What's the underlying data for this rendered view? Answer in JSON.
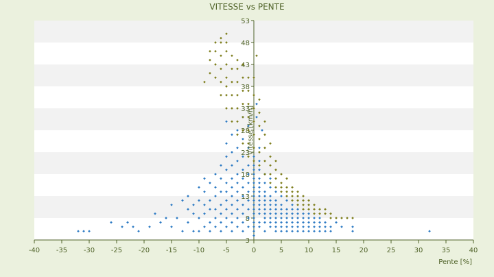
{
  "chart_data": {
    "type": "scatter",
    "title": "VITESSE vs PENTE",
    "xlabel": "Pente [%]",
    "ylabel": "Vitesse [km/h]",
    "xlim": [
      -40,
      40
    ],
    "ylim": [
      3,
      53
    ],
    "x_ticks": [
      -40,
      -35,
      -30,
      -25,
      -20,
      -15,
      -10,
      -5,
      0,
      5,
      10,
      15,
      20,
      25,
      30,
      35,
      40
    ],
    "y_ticks": [
      3,
      8,
      13,
      18,
      23,
      28,
      33,
      38,
      43,
      48,
      53
    ],
    "grid": "horizontal alternating bands",
    "legend": "none",
    "colors": {
      "background": "#ebf1de",
      "band_light": "#ffffff",
      "band_dark": "#f2f2f2",
      "axis": "#4f6228",
      "text": "#4f6228",
      "series_blue": "#2e7bc4",
      "series_olive": "#7f7f1f"
    },
    "series": [
      {
        "color": "#2e7bc4",
        "points": [
          [
            -32,
            5
          ],
          [
            -31,
            5
          ],
          [
            -30,
            5
          ],
          [
            -26,
            7
          ],
          [
            -24,
            6
          ],
          [
            -23,
            7
          ],
          [
            -22,
            6
          ],
          [
            -21,
            5
          ],
          [
            -19,
            6
          ],
          [
            -18,
            9
          ],
          [
            -17,
            7
          ],
          [
            -16,
            8
          ],
          [
            -15,
            11
          ],
          [
            -15,
            6
          ],
          [
            -14,
            8
          ],
          [
            -13,
            12
          ],
          [
            -13,
            5
          ],
          [
            -12,
            7
          ],
          [
            -12,
            10
          ],
          [
            -12,
            13
          ],
          [
            -11,
            5
          ],
          [
            -11,
            9
          ],
          [
            -11,
            11
          ],
          [
            -10,
            5
          ],
          [
            -10,
            8
          ],
          [
            -10,
            12
          ],
          [
            -10,
            15
          ],
          [
            -9,
            6
          ],
          [
            -9,
            9
          ],
          [
            -9,
            11
          ],
          [
            -9,
            14
          ],
          [
            -9,
            17
          ],
          [
            -8,
            5
          ],
          [
            -8,
            7
          ],
          [
            -8,
            10
          ],
          [
            -8,
            12
          ],
          [
            -8,
            16
          ],
          [
            -7,
            6
          ],
          [
            -7,
            8
          ],
          [
            -7,
            10
          ],
          [
            -7,
            13
          ],
          [
            -7,
            15
          ],
          [
            -7,
            18
          ],
          [
            -6,
            5
          ],
          [
            -6,
            7
          ],
          [
            -6,
            9
          ],
          [
            -6,
            11
          ],
          [
            -6,
            14
          ],
          [
            -6,
            17
          ],
          [
            -6,
            20
          ],
          [
            -5,
            6
          ],
          [
            -5,
            8
          ],
          [
            -5,
            10
          ],
          [
            -5,
            12
          ],
          [
            -5,
            14
          ],
          [
            -5,
            16
          ],
          [
            -5,
            19
          ],
          [
            -5,
            22
          ],
          [
            -5,
            25
          ],
          [
            -5,
            30
          ],
          [
            -4,
            5
          ],
          [
            -4,
            7
          ],
          [
            -4,
            9
          ],
          [
            -4,
            11
          ],
          [
            -4,
            13
          ],
          [
            -4,
            15
          ],
          [
            -4,
            17
          ],
          [
            -4,
            20
          ],
          [
            -4,
            23
          ],
          [
            -4,
            27
          ],
          [
            -3,
            6
          ],
          [
            -3,
            8
          ],
          [
            -3,
            10
          ],
          [
            -3,
            12
          ],
          [
            -3,
            14
          ],
          [
            -3,
            16
          ],
          [
            -3,
            18
          ],
          [
            -3,
            21
          ],
          [
            -3,
            24
          ],
          [
            -3,
            28
          ],
          [
            -2,
            5
          ],
          [
            -2,
            7
          ],
          [
            -2,
            9
          ],
          [
            -2,
            11
          ],
          [
            -2,
            13
          ],
          [
            -2,
            15
          ],
          [
            -2,
            17
          ],
          [
            -2,
            19
          ],
          [
            -2,
            22
          ],
          [
            -2,
            26
          ],
          [
            -2,
            31
          ],
          [
            -1,
            6
          ],
          [
            -1,
            8
          ],
          [
            -1,
            10
          ],
          [
            -1,
            12
          ],
          [
            -1,
            14
          ],
          [
            -1,
            16
          ],
          [
            -1,
            18
          ],
          [
            -1,
            20
          ],
          [
            -1,
            24
          ],
          [
            -1,
            29
          ],
          [
            0,
            4
          ],
          [
            0,
            5
          ],
          [
            0,
            6
          ],
          [
            0,
            7
          ],
          [
            0,
            8
          ],
          [
            0,
            9
          ],
          [
            0,
            10
          ],
          [
            0,
            11
          ],
          [
            0,
            12
          ],
          [
            0,
            13
          ],
          [
            0,
            14
          ],
          [
            0,
            15
          ],
          [
            0,
            16
          ],
          [
            0,
            17
          ],
          [
            0,
            18
          ],
          [
            0,
            19
          ],
          [
            0,
            20
          ],
          [
            0,
            22
          ],
          [
            0,
            24
          ],
          [
            0,
            27
          ],
          [
            0.5,
            31
          ],
          [
            0.5,
            34
          ],
          [
            1,
            6
          ],
          [
            1,
            7
          ],
          [
            1,
            9
          ],
          [
            1,
            10
          ],
          [
            1,
            11
          ],
          [
            1,
            12
          ],
          [
            1,
            13
          ],
          [
            1,
            14
          ],
          [
            1,
            15
          ],
          [
            1,
            16
          ],
          [
            1,
            17
          ],
          [
            1,
            19
          ],
          [
            1,
            21
          ],
          [
            1,
            24
          ],
          [
            1.5,
            28
          ],
          [
            2,
            5
          ],
          [
            2,
            7
          ],
          [
            2,
            8
          ],
          [
            2,
            9
          ],
          [
            2,
            10
          ],
          [
            2,
            11
          ],
          [
            2,
            12
          ],
          [
            2,
            13
          ],
          [
            2,
            14
          ],
          [
            2,
            16
          ],
          [
            2,
            18
          ],
          [
            3,
            6
          ],
          [
            3,
            7
          ],
          [
            3,
            8
          ],
          [
            3,
            9
          ],
          [
            3,
            10
          ],
          [
            3,
            11
          ],
          [
            3,
            12
          ],
          [
            3,
            13
          ],
          [
            3,
            15
          ],
          [
            3,
            17
          ],
          [
            4,
            5
          ],
          [
            4,
            6
          ],
          [
            4,
            7
          ],
          [
            4,
            8
          ],
          [
            4,
            9
          ],
          [
            4,
            10
          ],
          [
            4,
            11
          ],
          [
            4,
            12
          ],
          [
            4,
            14
          ],
          [
            5,
            5
          ],
          [
            5,
            6
          ],
          [
            5,
            7
          ],
          [
            5,
            8
          ],
          [
            5,
            9
          ],
          [
            5,
            10
          ],
          [
            5,
            11
          ],
          [
            5,
            13
          ],
          [
            6,
            5
          ],
          [
            6,
            6
          ],
          [
            6,
            7
          ],
          [
            6,
            8
          ],
          [
            6,
            9
          ],
          [
            6,
            10
          ],
          [
            6,
            12
          ],
          [
            7,
            5
          ],
          [
            7,
            6
          ],
          [
            7,
            7
          ],
          [
            7,
            8
          ],
          [
            7,
            9
          ],
          [
            7,
            10
          ],
          [
            7,
            11
          ],
          [
            8,
            5
          ],
          [
            8,
            6
          ],
          [
            8,
            7
          ],
          [
            8,
            8
          ],
          [
            8,
            9
          ],
          [
            8,
            10
          ],
          [
            9,
            5
          ],
          [
            9,
            6
          ],
          [
            9,
            7
          ],
          [
            9,
            8
          ],
          [
            9,
            9
          ],
          [
            10,
            5
          ],
          [
            10,
            6
          ],
          [
            10,
            7
          ],
          [
            10,
            8
          ],
          [
            10,
            9
          ],
          [
            11,
            5
          ],
          [
            11,
            6
          ],
          [
            11,
            7
          ],
          [
            11,
            8
          ],
          [
            12,
            5
          ],
          [
            12,
            6
          ],
          [
            12,
            7
          ],
          [
            12,
            8
          ],
          [
            13,
            5
          ],
          [
            13,
            6
          ],
          [
            13,
            7
          ],
          [
            14,
            5
          ],
          [
            14,
            6
          ],
          [
            15,
            7
          ],
          [
            16,
            6
          ],
          [
            18,
            5
          ],
          [
            18,
            6
          ],
          [
            32,
            5
          ]
        ]
      },
      {
        "color": "#7f7f1f",
        "points": [
          [
            -9,
            39
          ],
          [
            -8,
            41
          ],
          [
            -8,
            44
          ],
          [
            -8,
            46
          ],
          [
            -7,
            40
          ],
          [
            -7,
            43
          ],
          [
            -7,
            46
          ],
          [
            -7,
            48
          ],
          [
            -6,
            36
          ],
          [
            -6,
            39
          ],
          [
            -6,
            42
          ],
          [
            -6,
            45
          ],
          [
            -6,
            48
          ],
          [
            -6,
            49
          ],
          [
            -5,
            33
          ],
          [
            -5,
            36
          ],
          [
            -5,
            38
          ],
          [
            -5,
            40
          ],
          [
            -5,
            43
          ],
          [
            -5,
            46
          ],
          [
            -5,
            48
          ],
          [
            -5,
            50
          ],
          [
            -4,
            30
          ],
          [
            -4,
            33
          ],
          [
            -4,
            36
          ],
          [
            -4,
            39
          ],
          [
            -4,
            42
          ],
          [
            -4,
            45
          ],
          [
            -3,
            27
          ],
          [
            -3,
            30
          ],
          [
            -3,
            33
          ],
          [
            -3,
            36
          ],
          [
            -3,
            39
          ],
          [
            -3,
            42
          ],
          [
            -3,
            44
          ],
          [
            -2,
            25
          ],
          [
            -2,
            28
          ],
          [
            -2,
            31
          ],
          [
            -2,
            34
          ],
          [
            -2,
            37
          ],
          [
            -2,
            40
          ],
          [
            -2,
            43
          ],
          [
            -1,
            22
          ],
          [
            -1,
            25
          ],
          [
            -1,
            28
          ],
          [
            -1,
            31
          ],
          [
            -1,
            34
          ],
          [
            -1,
            37
          ],
          [
            -1,
            40
          ],
          [
            0,
            21
          ],
          [
            0,
            24
          ],
          [
            0,
            27
          ],
          [
            0,
            30
          ],
          [
            0,
            33
          ],
          [
            0,
            36
          ],
          [
            0,
            40
          ],
          [
            0.5,
            45
          ],
          [
            1,
            20
          ],
          [
            1,
            23
          ],
          [
            1,
            26
          ],
          [
            1,
            29
          ],
          [
            1,
            32
          ],
          [
            1,
            35
          ],
          [
            2,
            18
          ],
          [
            2,
            21
          ],
          [
            2,
            24
          ],
          [
            2,
            27
          ],
          [
            2,
            30
          ],
          [
            3,
            16
          ],
          [
            3,
            18
          ],
          [
            3,
            20
          ],
          [
            3,
            22
          ],
          [
            3,
            25
          ],
          [
            4,
            15
          ],
          [
            4,
            17
          ],
          [
            4,
            19
          ],
          [
            4,
            21
          ],
          [
            5,
            14
          ],
          [
            5,
            15
          ],
          [
            5,
            16
          ],
          [
            5,
            18
          ],
          [
            6,
            13
          ],
          [
            6,
            14
          ],
          [
            6,
            15
          ],
          [
            6,
            17
          ],
          [
            7,
            12
          ],
          [
            7,
            13
          ],
          [
            7,
            14
          ],
          [
            7,
            15
          ],
          [
            8,
            11
          ],
          [
            8,
            12
          ],
          [
            8,
            13
          ],
          [
            8,
            14
          ],
          [
            9,
            10
          ],
          [
            9,
            11
          ],
          [
            9,
            12
          ],
          [
            9,
            13
          ],
          [
            10,
            10
          ],
          [
            10,
            11
          ],
          [
            10,
            12
          ],
          [
            11,
            9
          ],
          [
            11,
            10
          ],
          [
            11,
            11
          ],
          [
            12,
            9
          ],
          [
            12,
            10
          ],
          [
            13,
            9
          ],
          [
            13,
            10
          ],
          [
            14,
            8
          ],
          [
            14,
            9
          ],
          [
            15,
            8
          ],
          [
            16,
            8
          ],
          [
            17,
            8
          ],
          [
            18,
            8
          ]
        ]
      }
    ]
  }
}
